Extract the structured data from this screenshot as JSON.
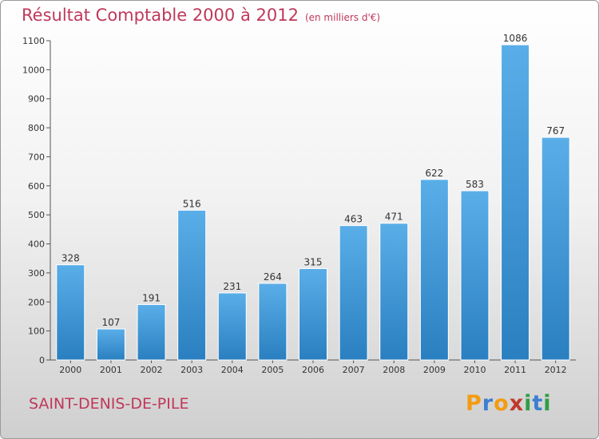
{
  "chart_data": {
    "type": "bar",
    "title": "Résultat Comptable 2000 à 2012",
    "unit": "(en milliers d'€)",
    "categories": [
      "2000",
      "2001",
      "2002",
      "2003",
      "2004",
      "2005",
      "2006",
      "2007",
      "2008",
      "2009",
      "2010",
      "2011",
      "2012"
    ],
    "values": [
      328,
      107,
      191,
      516,
      231,
      264,
      315,
      463,
      471,
      622,
      583,
      1086,
      767
    ],
    "ylim": [
      0,
      1100
    ],
    "yticks": [
      0,
      100,
      200,
      300,
      400,
      500,
      600,
      700,
      800,
      900,
      1000,
      1100
    ],
    "grid": false,
    "bar_color_top": "#5aaee8",
    "bar_color_bottom": "#2a7fc0"
  },
  "footer": {
    "place": "SAINT-DENIS-DE-PILE",
    "logo_letters": [
      {
        "ch": "P",
        "color": "#f39c12"
      },
      {
        "ch": "r",
        "color": "#3a7fd0"
      },
      {
        "ch": "o",
        "color": "#f39c12"
      },
      {
        "ch": "x",
        "color": "#c0392b"
      },
      {
        "ch": "i",
        "color": "#2e9e44"
      },
      {
        "ch": "t",
        "color": "#3a7fd0"
      },
      {
        "ch": "i",
        "color": "#2e9e44"
      }
    ]
  },
  "colors": {
    "title": "#c0385b",
    "axis": "#555555"
  }
}
